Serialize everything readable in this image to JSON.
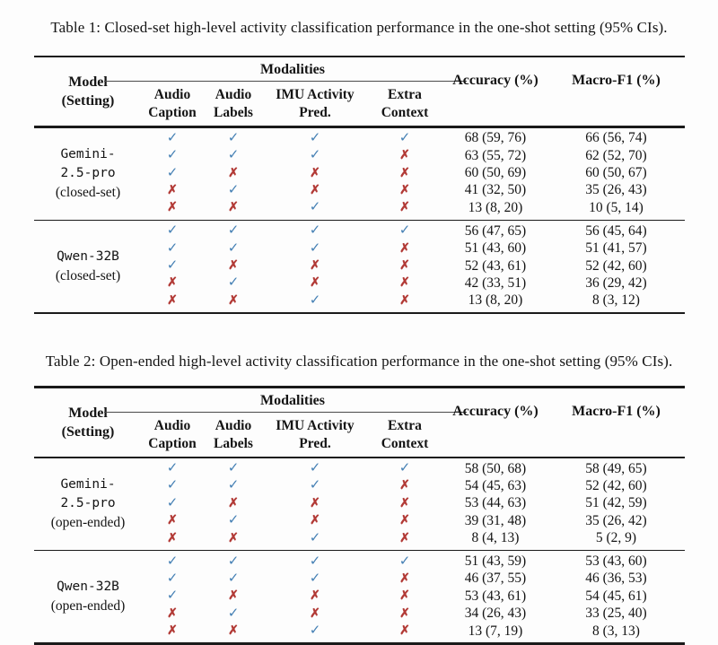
{
  "colors": {
    "check": "#4580b4",
    "cross": "#b23a36",
    "rule": "#1a1a1a"
  },
  "tables": [
    {
      "caption": "Table 1: Closed-set high-level activity classification performance in the one-shot setting (95% CIs).",
      "header": {
        "model": "Model\n(Setting)",
        "modalities": "Modalities",
        "columns": [
          "Audio\nCaption",
          "Audio\nLabels",
          "IMU Activity\nPred.",
          "Extra\nContext"
        ],
        "accuracy": "Accuracy (%)",
        "macro_f1": "Macro-F1 (%)"
      },
      "groups": [
        {
          "model": "Gemini-\n2.5-pro",
          "setting": "(closed-set)",
          "rows": [
            {
              "marks": [
                "✓",
                "✓",
                "✓",
                "✓"
              ],
              "accuracy": "68 (59, 76)",
              "macro_f1": "66 (56, 74)"
            },
            {
              "marks": [
                "✓",
                "✓",
                "✓",
                "✗"
              ],
              "accuracy": "63 (55, 72)",
              "macro_f1": "62 (52, 70)"
            },
            {
              "marks": [
                "✓",
                "✗",
                "✗",
                "✗"
              ],
              "accuracy": "60 (50, 69)",
              "macro_f1": "60 (50, 67)"
            },
            {
              "marks": [
                "✗",
                "✓",
                "✗",
                "✗"
              ],
              "accuracy": "41 (32, 50)",
              "macro_f1": "35 (26, 43)"
            },
            {
              "marks": [
                "✗",
                "✗",
                "✓",
                "✗"
              ],
              "accuracy": "13 (8, 20)",
              "macro_f1": "10 (5, 14)"
            }
          ]
        },
        {
          "model": "Qwen-32B",
          "setting": "(closed-set)",
          "rows": [
            {
              "marks": [
                "✓",
                "✓",
                "✓",
                "✓"
              ],
              "accuracy": "56 (47, 65)",
              "macro_f1": "56 (45, 64)"
            },
            {
              "marks": [
                "✓",
                "✓",
                "✓",
                "✗"
              ],
              "accuracy": "51 (43, 60)",
              "macro_f1": "51 (41, 57)"
            },
            {
              "marks": [
                "✓",
                "✗",
                "✗",
                "✗"
              ],
              "accuracy": "52 (43, 61)",
              "macro_f1": "52 (42, 60)"
            },
            {
              "marks": [
                "✗",
                "✓",
                "✗",
                "✗"
              ],
              "accuracy": "42 (33, 51)",
              "macro_f1": "36 (29, 42)"
            },
            {
              "marks": [
                "✗",
                "✗",
                "✓",
                "✗"
              ],
              "accuracy": "13 (8, 20)",
              "macro_f1": "8 (3, 12)"
            }
          ]
        }
      ]
    },
    {
      "caption": "Table 2: Open-ended high-level activity classification performance in the one-shot setting (95% CIs).",
      "header": {
        "model": "Model\n(Setting)",
        "modalities": "Modalities",
        "columns": [
          "Audio\nCaption",
          "Audio\nLabels",
          "IMU Activity\nPred.",
          "Extra\nContext"
        ],
        "accuracy": "Accuracy (%)",
        "macro_f1": "Macro-F1 (%)"
      },
      "groups": [
        {
          "model": "Gemini-\n2.5-pro",
          "setting": "(open-ended)",
          "rows": [
            {
              "marks": [
                "✓",
                "✓",
                "✓",
                "✓"
              ],
              "accuracy": "58 (50, 68)",
              "macro_f1": "58 (49, 65)"
            },
            {
              "marks": [
                "✓",
                "✓",
                "✓",
                "✗"
              ],
              "accuracy": "54 (45, 63)",
              "macro_f1": "52 (42, 60)"
            },
            {
              "marks": [
                "✓",
                "✗",
                "✗",
                "✗"
              ],
              "accuracy": "53 (44, 63)",
              "macro_f1": "51 (42, 59)"
            },
            {
              "marks": [
                "✗",
                "✓",
                "✗",
                "✗"
              ],
              "accuracy": "39 (31, 48)",
              "macro_f1": "35 (26, 42)"
            },
            {
              "marks": [
                "✗",
                "✗",
                "✓",
                "✗"
              ],
              "accuracy": "8 (4, 13)",
              "macro_f1": "5 (2, 9)"
            }
          ]
        },
        {
          "model": "Qwen-32B",
          "setting": "(open-ended)",
          "rows": [
            {
              "marks": [
                "✓",
                "✓",
                "✓",
                "✓"
              ],
              "accuracy": "51 (43, 59)",
              "macro_f1": "53 (43, 60)"
            },
            {
              "marks": [
                "✓",
                "✓",
                "✓",
                "✗"
              ],
              "accuracy": "46 (37, 55)",
              "macro_f1": "46 (36, 53)"
            },
            {
              "marks": [
                "✓",
                "✗",
                "✗",
                "✗"
              ],
              "accuracy": "53 (43, 61)",
              "macro_f1": "54 (45, 61)"
            },
            {
              "marks": [
                "✗",
                "✓",
                "✗",
                "✗"
              ],
              "accuracy": "34 (26, 43)",
              "macro_f1": "33 (25, 40)"
            },
            {
              "marks": [
                "✗",
                "✗",
                "✓",
                "✗"
              ],
              "accuracy": "13 (7, 19)",
              "macro_f1": "8 (3, 13)"
            }
          ]
        }
      ]
    }
  ]
}
